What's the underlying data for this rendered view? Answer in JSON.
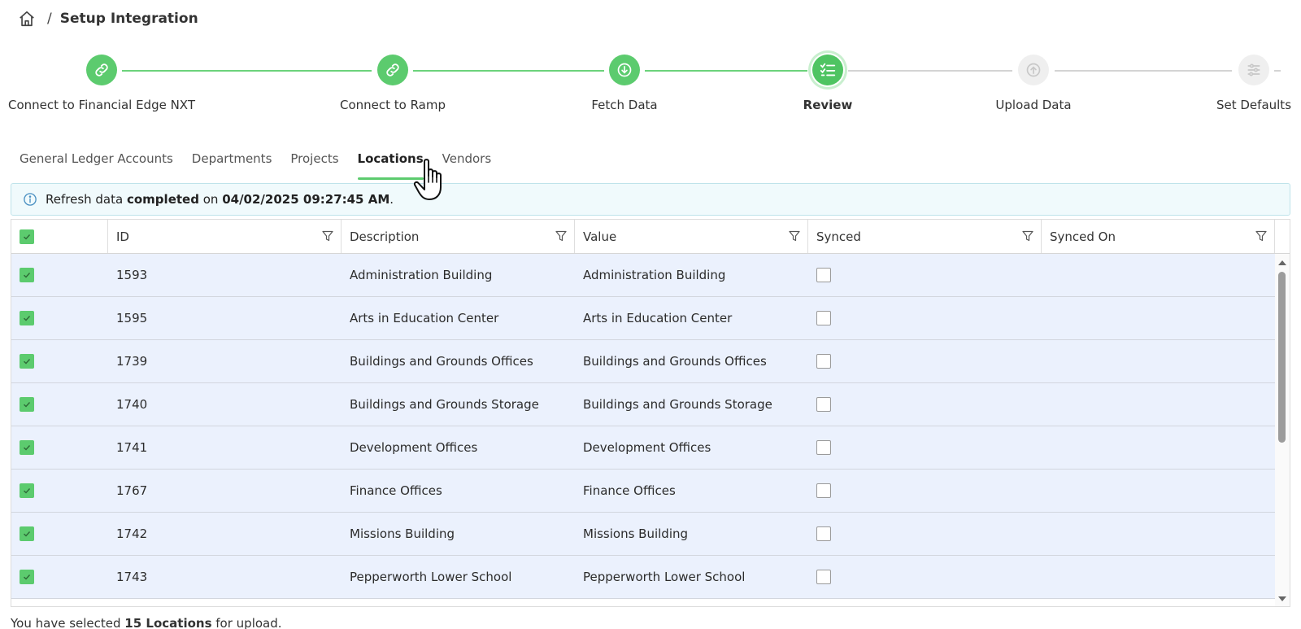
{
  "breadcrumb": {
    "separator": "/",
    "title": "Setup Integration"
  },
  "steps": [
    {
      "label": "Connect to Financial Edge NXT",
      "status": "done",
      "icon": "link-icon"
    },
    {
      "label": "Connect to Ramp",
      "status": "done",
      "icon": "link-icon"
    },
    {
      "label": "Fetch Data",
      "status": "done",
      "icon": "download-icon"
    },
    {
      "label": "Review",
      "status": "current",
      "icon": "checklist-icon"
    },
    {
      "label": "Upload Data",
      "status": "todo",
      "icon": "upload-icon"
    },
    {
      "label": "Set Defaults",
      "status": "todo",
      "icon": "sliders-icon"
    }
  ],
  "tabs": [
    {
      "label": "General Ledger Accounts",
      "active": false
    },
    {
      "label": "Departments",
      "active": false
    },
    {
      "label": "Projects",
      "active": false
    },
    {
      "label": "Locations",
      "active": true
    },
    {
      "label": "Vendors",
      "active": false
    }
  ],
  "info": {
    "prefix": "Refresh data",
    "status": "completed",
    "mid": "on",
    "timestamp": "04/02/2025 09:27:45 AM",
    "suffix": "."
  },
  "table": {
    "columns": [
      "ID",
      "Description",
      "Value",
      "Synced",
      "Synced On"
    ],
    "rows": [
      {
        "id": "1593",
        "description": "Administration Building",
        "value": "Administration Building",
        "synced": false,
        "synced_on": ""
      },
      {
        "id": "1595",
        "description": "Arts in Education Center",
        "value": "Arts in Education Center",
        "synced": false,
        "synced_on": ""
      },
      {
        "id": "1739",
        "description": "Buildings and Grounds Offices",
        "value": "Buildings and Grounds Offices",
        "synced": false,
        "synced_on": ""
      },
      {
        "id": "1740",
        "description": "Buildings and Grounds Storage",
        "value": "Buildings and Grounds Storage",
        "synced": false,
        "synced_on": ""
      },
      {
        "id": "1741",
        "description": "Development Offices",
        "value": "Development Offices",
        "synced": false,
        "synced_on": ""
      },
      {
        "id": "1767",
        "description": "Finance Offices",
        "value": "Finance Offices",
        "synced": false,
        "synced_on": ""
      },
      {
        "id": "1742",
        "description": "Missions Building",
        "value": "Missions Building",
        "synced": false,
        "synced_on": ""
      },
      {
        "id": "1743",
        "description": "Pepperworth Lower School",
        "value": "Pepperworth Lower School",
        "synced": false,
        "synced_on": ""
      }
    ]
  },
  "footer": {
    "prefix": "You have selected",
    "count": "15 Locations",
    "suffix": "for upload."
  },
  "colors": {
    "accent": "#5ccb6e",
    "row_bg": "#ebf1fd",
    "info_bg": "#f0fafc"
  }
}
